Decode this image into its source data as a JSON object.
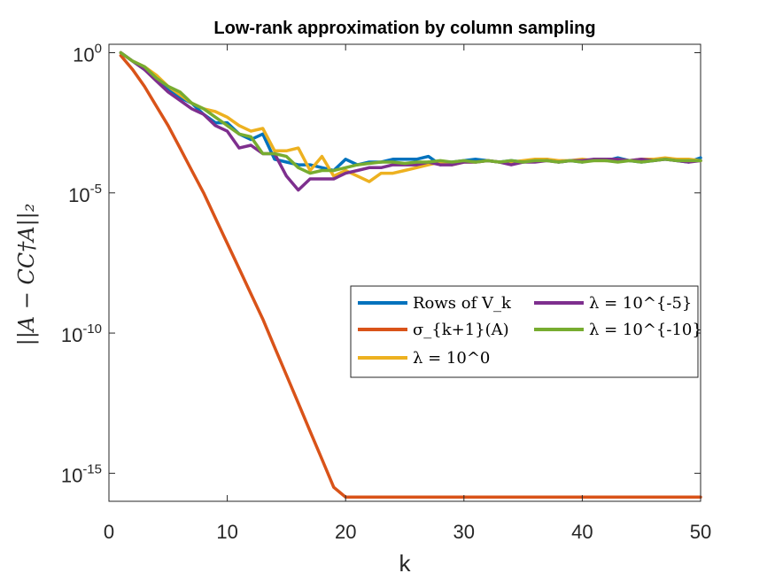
{
  "chart_data": {
    "type": "line",
    "title": "Low-rank approximation by column sampling",
    "xlabel": "k",
    "ylabel": "||A − CC†A||₂",
    "xlim": [
      0,
      50
    ],
    "ylim_log10": [
      -16,
      0.3
    ],
    "y_scale": "log",
    "x_ticks": [
      "0",
      "10",
      "20",
      "30",
      "40",
      "50"
    ],
    "y_ticks": [
      {
        "base": "10",
        "exp": "0"
      },
      {
        "base": "10",
        "exp": "-5"
      },
      {
        "base": "10",
        "exp": "-10"
      },
      {
        "base": "10",
        "exp": "-15"
      }
    ],
    "grid": false,
    "legend_placement": "middle-right",
    "series": [
      {
        "name": "Rows of V_k",
        "color": "#0072BD",
        "x": [
          1,
          2,
          3,
          4,
          5,
          6,
          7,
          8,
          9,
          10,
          11,
          12,
          13,
          14,
          15,
          16,
          17,
          18,
          19,
          20,
          21,
          22,
          23,
          24,
          25,
          26,
          27,
          28,
          29,
          30,
          31,
          32,
          33,
          34,
          35,
          36,
          37,
          38,
          39,
          40,
          41,
          42,
          43,
          44,
          45,
          46,
          47,
          48,
          49,
          50
        ],
        "log10y": [
          0,
          -0.3,
          -0.6,
          -0.9,
          -1.3,
          -1.6,
          -1.8,
          -2.2,
          -2.5,
          -2.5,
          -2.9,
          -3.1,
          -2.9,
          -3.8,
          -3.9,
          -4.0,
          -4.0,
          -4.1,
          -4.2,
          -3.8,
          -4.0,
          -3.9,
          -3.9,
          -3.8,
          -3.8,
          -3.8,
          -3.7,
          -4.0,
          -3.9,
          -3.85,
          -3.8,
          -3.85,
          -3.9,
          -3.85,
          -3.9,
          -3.85,
          -3.8,
          -3.9,
          -3.85,
          -3.9,
          -3.8,
          -3.85,
          -3.75,
          -3.85,
          -3.9,
          -3.85,
          -3.8,
          -3.85,
          -3.9,
          -3.75
        ]
      },
      {
        "name": "σ_{k+1}(A)",
        "color": "#D95319",
        "x": [
          1,
          2,
          3,
          4,
          5,
          6,
          7,
          8,
          9,
          10,
          11,
          12,
          13,
          14,
          15,
          16,
          17,
          18,
          19,
          20,
          21,
          22,
          23,
          24,
          25,
          26,
          27,
          28,
          29,
          30,
          31,
          32,
          33,
          34,
          35,
          36,
          37,
          38,
          39,
          40,
          41,
          42,
          43,
          44,
          45,
          46,
          47,
          48,
          49,
          50
        ],
        "log10y": [
          -0.1,
          -0.6,
          -1.2,
          -1.9,
          -2.6,
          -3.4,
          -4.2,
          -5.0,
          -5.9,
          -6.8,
          -7.7,
          -8.6,
          -9.5,
          -10.5,
          -11.5,
          -12.5,
          -13.5,
          -14.5,
          -15.5,
          -15.85,
          -15.85,
          -15.85,
          -15.85,
          -15.85,
          -15.85,
          -15.85,
          -15.85,
          -15.85,
          -15.85,
          -15.85,
          -15.85,
          -15.85,
          -15.85,
          -15.85,
          -15.85,
          -15.85,
          -15.85,
          -15.85,
          -15.85,
          -15.85,
          -15.85,
          -15.85,
          -15.85,
          -15.85,
          -15.85,
          -15.85,
          -15.85,
          -15.85,
          -15.85,
          -15.85
        ]
      },
      {
        "name": "λ = 10^0",
        "color": "#EDB120",
        "x": [
          1,
          2,
          3,
          4,
          5,
          6,
          7,
          8,
          9,
          10,
          11,
          12,
          13,
          14,
          15,
          16,
          17,
          18,
          19,
          20,
          21,
          22,
          23,
          24,
          25,
          26,
          27,
          28,
          29,
          30,
          31,
          32,
          33,
          34,
          35,
          36,
          37,
          38,
          39,
          40,
          41,
          42,
          43,
          44,
          45,
          46,
          47,
          48,
          49,
          50
        ],
        "log10y": [
          0,
          -0.3,
          -0.5,
          -0.8,
          -1.2,
          -1.5,
          -1.8,
          -2.0,
          -2.1,
          -2.3,
          -2.6,
          -2.8,
          -2.7,
          -3.5,
          -3.5,
          -3.4,
          -4.2,
          -3.7,
          -4.4,
          -4.2,
          -4.4,
          -4.6,
          -4.3,
          -4.3,
          -4.2,
          -4.1,
          -4.0,
          -3.9,
          -4.0,
          -3.9,
          -3.9,
          -3.85,
          -3.9,
          -3.9,
          -3.85,
          -3.8,
          -3.8,
          -3.85,
          -3.85,
          -3.8,
          -3.85,
          -3.85,
          -3.8,
          -3.85,
          -3.8,
          -3.8,
          -3.75,
          -3.8,
          -3.8,
          -3.85
        ]
      },
      {
        "name": "λ = 10^{-5}",
        "color": "#7E2F8E",
        "x": [
          1,
          2,
          3,
          4,
          5,
          6,
          7,
          8,
          9,
          10,
          11,
          12,
          13,
          14,
          15,
          16,
          17,
          18,
          19,
          20,
          21,
          22,
          23,
          24,
          25,
          26,
          27,
          28,
          29,
          30,
          31,
          32,
          33,
          34,
          35,
          36,
          37,
          38,
          39,
          40,
          41,
          42,
          43,
          44,
          45,
          46,
          47,
          48,
          49,
          50
        ],
        "log10y": [
          0,
          -0.3,
          -0.6,
          -1.0,
          -1.4,
          -1.7,
          -2.0,
          -2.2,
          -2.6,
          -2.8,
          -3.4,
          -3.3,
          -3.6,
          -3.6,
          -4.4,
          -4.9,
          -4.5,
          -4.5,
          -4.5,
          -4.3,
          -4.2,
          -4.1,
          -4.1,
          -4.0,
          -4.0,
          -4.0,
          -3.9,
          -4.0,
          -4.0,
          -3.9,
          -3.9,
          -3.85,
          -3.9,
          -4.0,
          -3.9,
          -3.9,
          -3.85,
          -3.9,
          -3.85,
          -3.85,
          -3.8,
          -3.8,
          -3.8,
          -3.85,
          -3.8,
          -3.85,
          -3.8,
          -3.85,
          -3.9,
          -3.85
        ]
      },
      {
        "name": "λ = 10^{-10}",
        "color": "#77AC30",
        "x": [
          1,
          2,
          3,
          4,
          5,
          6,
          7,
          8,
          9,
          10,
          11,
          12,
          13,
          14,
          15,
          16,
          17,
          18,
          19,
          20,
          21,
          22,
          23,
          24,
          25,
          26,
          27,
          28,
          29,
          30,
          31,
          32,
          33,
          34,
          35,
          36,
          37,
          38,
          39,
          40,
          41,
          42,
          43,
          44,
          45,
          46,
          47,
          48,
          49,
          50
        ],
        "log10y": [
          0,
          -0.3,
          -0.5,
          -0.9,
          -1.2,
          -1.4,
          -1.8,
          -2.0,
          -2.3,
          -2.6,
          -2.9,
          -3.0,
          -3.6,
          -3.6,
          -3.7,
          -4.1,
          -4.3,
          -4.2,
          -4.2,
          -4.1,
          -4.0,
          -3.95,
          -3.9,
          -3.9,
          -3.95,
          -3.9,
          -3.9,
          -3.85,
          -3.9,
          -3.85,
          -3.9,
          -3.85,
          -3.9,
          -3.85,
          -3.9,
          -3.85,
          -3.85,
          -3.9,
          -3.85,
          -3.9,
          -3.85,
          -3.85,
          -3.9,
          -3.85,
          -3.9,
          -3.85,
          -3.8,
          -3.85,
          -3.85,
          -3.85
        ]
      }
    ]
  }
}
